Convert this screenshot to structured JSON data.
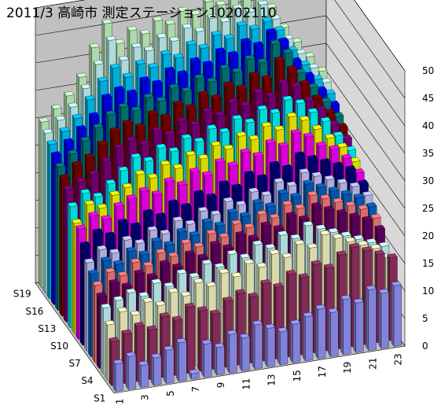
{
  "chart_data": {
    "type": "bar3d",
    "title": "2011/3 高崎市 測定ステーション10202110",
    "categories": [
      "1",
      null,
      "3",
      null,
      "5",
      null,
      "7",
      null,
      "9",
      null,
      "11",
      null,
      "13",
      null,
      "15",
      null,
      "17",
      null,
      "19",
      null,
      "21",
      null,
      "23"
    ],
    "ylim": [
      0,
      50
    ],
    "yticks": [
      0,
      5,
      10,
      15,
      20,
      25,
      30,
      35,
      40,
      45,
      50
    ],
    "grid": true,
    "series": [
      {
        "name": "S1",
        "color": "#9999FF",
        "values": [
          5,
          6,
          4,
          5,
          6,
          7,
          1,
          6,
          5,
          7,
          6,
          8,
          7,
          6,
          7,
          8,
          9,
          8,
          10,
          9,
          11,
          10,
          11
        ]
      },
      {
        "name": null,
        "color": "#993366",
        "values": [
          8,
          9,
          10,
          9,
          11,
          10,
          12,
          11,
          10,
          12,
          13,
          12,
          14,
          13,
          15,
          14,
          16,
          15,
          17,
          18,
          17,
          16,
          15
        ]
      },
      {
        "name": null,
        "color": "#FFFFCC",
        "values": [
          10,
          12,
          11,
          13,
          12,
          14,
          13,
          15,
          14,
          16,
          15,
          17,
          16,
          18,
          17,
          19,
          18,
          20,
          19,
          18,
          17,
          16,
          14
        ]
      },
      {
        "name": "S4",
        "color": "#CCFFFF",
        "values": [
          12,
          13,
          14,
          13,
          15,
          14,
          16,
          15,
          17,
          16,
          18,
          17,
          19,
          18,
          20,
          19,
          21,
          20,
          19,
          18,
          17,
          16,
          15
        ]
      },
      {
        "name": null,
        "color": "#660066",
        "values": [
          13,
          15,
          14,
          16,
          15,
          17,
          16,
          18,
          17,
          19,
          18,
          20,
          19,
          21,
          20,
          22,
          21,
          23,
          22,
          21,
          20,
          19,
          17
        ]
      },
      {
        "name": null,
        "color": "#FF8080",
        "values": [
          14,
          16,
          15,
          17,
          16,
          18,
          17,
          19,
          18,
          20,
          19,
          21,
          20,
          22,
          21,
          23,
          22,
          24,
          23,
          22,
          21,
          20,
          18
        ]
      },
      {
        "name": "S7",
        "color": "#0066CC",
        "values": [
          15,
          17,
          16,
          18,
          17,
          19,
          18,
          20,
          19,
          21,
          20,
          22,
          21,
          23,
          22,
          24,
          23,
          25,
          24,
          23,
          22,
          21,
          19
        ]
      },
      {
        "name": null,
        "color": "#CCCCFF",
        "values": [
          16,
          18,
          17,
          19,
          18,
          20,
          19,
          21,
          20,
          22,
          21,
          23,
          22,
          24,
          23,
          25,
          24,
          26,
          25,
          24,
          23,
          22,
          20
        ]
      },
      {
        "name": null,
        "color": "#000080",
        "values": [
          18,
          20,
          19,
          21,
          20,
          22,
          21,
          23,
          22,
          24,
          23,
          25,
          24,
          26,
          25,
          27,
          26,
          28,
          27,
          26,
          25,
          24,
          21
        ]
      },
      {
        "name": "S10",
        "color": "#FF00FF",
        "values": [
          20,
          22,
          21,
          23,
          24,
          25,
          24,
          26,
          25,
          27,
          26,
          28,
          27,
          29,
          28,
          30,
          29,
          31,
          30,
          28,
          27,
          25,
          22
        ]
      },
      {
        "name": null,
        "color": "#FFFF00",
        "values": [
          20,
          23,
          22,
          24,
          25,
          27,
          26,
          28,
          27,
          29,
          28,
          30,
          29,
          31,
          30,
          32,
          31,
          33,
          32,
          30,
          28,
          26,
          23
        ]
      },
      {
        "name": null,
        "color": "#00FFFF",
        "values": [
          22,
          24,
          23,
          25,
          27,
          29,
          28,
          30,
          29,
          31,
          30,
          32,
          31,
          33,
          32,
          34,
          33,
          35,
          34,
          32,
          30,
          27,
          24
        ]
      },
      {
        "name": "S13",
        "color": "#800080",
        "values": [
          24,
          25,
          26,
          28,
          30,
          31,
          30,
          32,
          31,
          33,
          32,
          34,
          33,
          35,
          34,
          36,
          35,
          37,
          36,
          33,
          31,
          28,
          25
        ]
      },
      {
        "name": null,
        "color": "#800000",
        "values": [
          25,
          27,
          28,
          30,
          32,
          33,
          32,
          34,
          33,
          35,
          34,
          36,
          35,
          37,
          36,
          38,
          37,
          40,
          38,
          35,
          32,
          29,
          26
        ]
      },
      {
        "name": null,
        "color": "#008080",
        "values": [
          26,
          28,
          30,
          32,
          34,
          35,
          34,
          36,
          35,
          37,
          36,
          38,
          37,
          39,
          38,
          40,
          39,
          42,
          40,
          36,
          33,
          30,
          27
        ]
      },
      {
        "name": "S16",
        "color": "#0000FF",
        "values": [
          27,
          29,
          31,
          33,
          36,
          37,
          36,
          38,
          37,
          39,
          38,
          40,
          39,
          41,
          40,
          42,
          41,
          43,
          41,
          37,
          34,
          31,
          28
        ]
      },
      {
        "name": null,
        "color": "#00CCFF",
        "values": [
          28,
          30,
          32,
          35,
          38,
          40,
          38,
          40,
          39,
          41,
          40,
          42,
          41,
          43,
          42,
          44,
          43,
          44,
          42,
          38,
          35,
          32,
          29
        ]
      },
      {
        "name": null,
        "color": "#CCFFFF",
        "values": [
          29,
          31,
          33,
          36,
          40,
          44,
          40,
          42,
          41,
          43,
          42,
          44,
          43,
          45,
          44,
          46,
          45,
          46,
          43,
          39,
          36,
          33,
          30
        ]
      },
      {
        "name": "S19",
        "color": "#CCFFCC",
        "values": [
          30,
          32,
          34,
          37,
          42,
          46,
          42,
          44,
          43,
          45,
          44,
          46,
          45,
          47,
          46,
          48,
          47,
          47,
          44,
          40,
          37,
          34,
          31
        ]
      }
    ]
  }
}
